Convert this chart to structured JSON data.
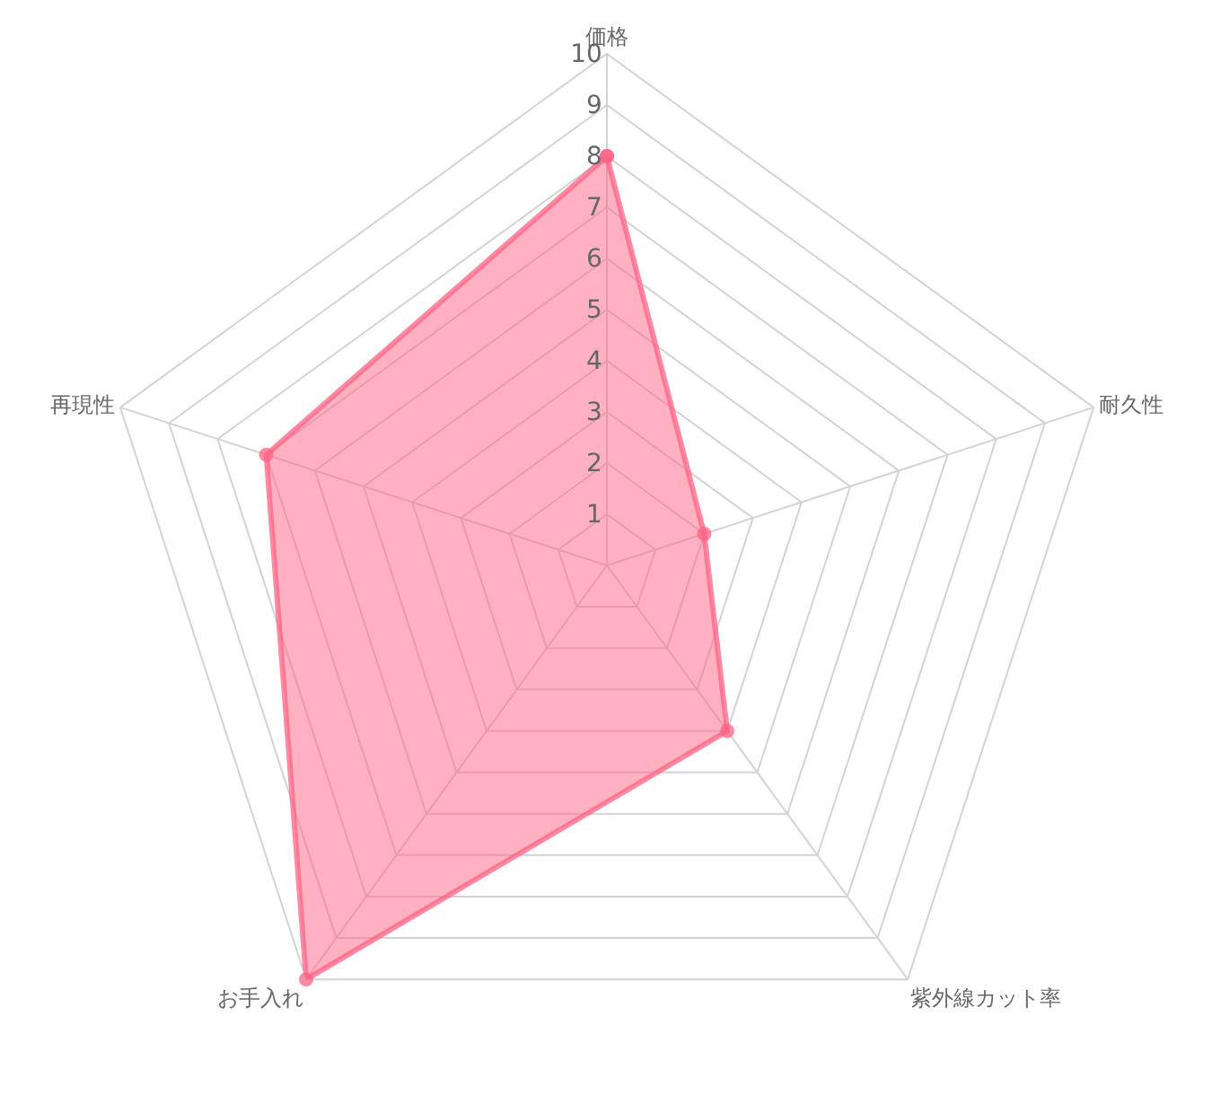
{
  "chart_data": {
    "type": "radar",
    "categories": [
      "価格",
      "耐久性",
      "紫外線カット率",
      "お手入れ",
      "再現性"
    ],
    "series": [
      {
        "color": "#ff6384",
        "values": [
          8,
          2,
          4,
          10,
          7
        ]
      }
    ],
    "ylim": [
      0,
      10
    ],
    "yticks": [
      1,
      2,
      3,
      4,
      5,
      6,
      7,
      8,
      9,
      10
    ],
    "grid": true,
    "marker": "circle",
    "legend": false
  }
}
